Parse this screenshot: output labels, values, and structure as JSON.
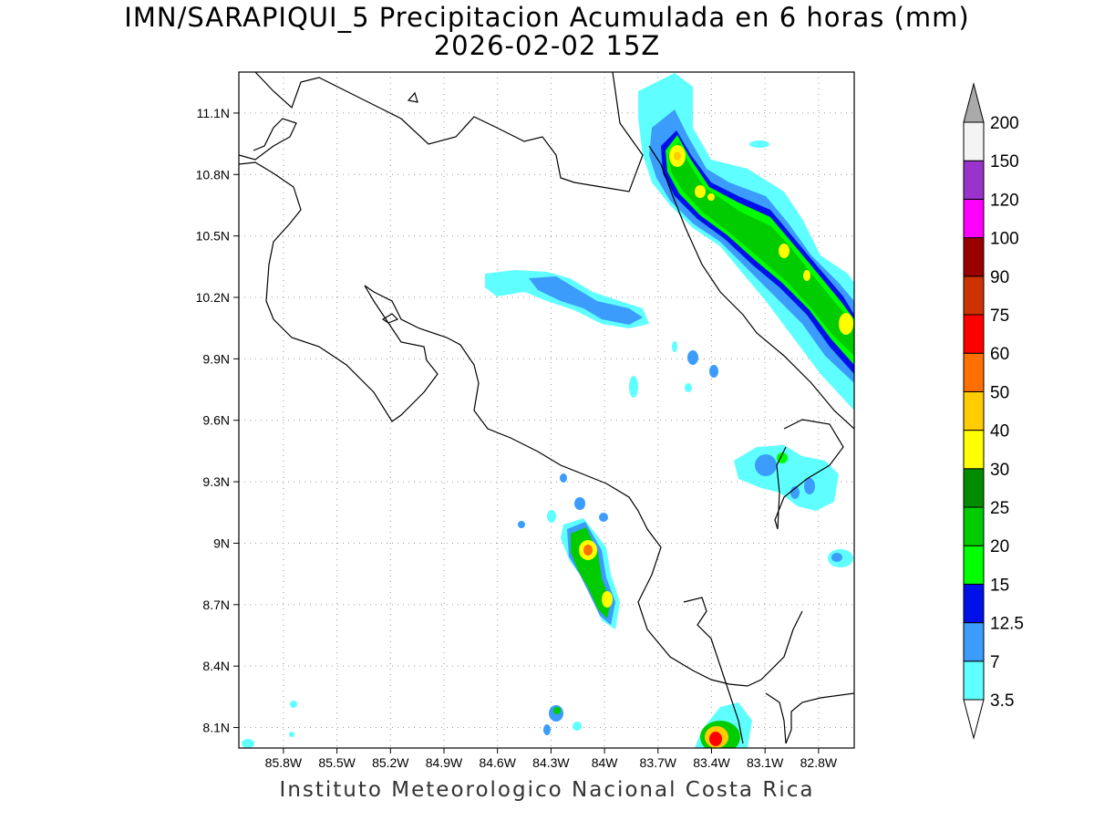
{
  "title_line1": "IMN/SARAPIQUI_5 Precipitacion Acumulada en 6 horas (mm)",
  "title_line2": "2026-02-02 15Z",
  "footer": "Instituto Meteorologico Nacional Costa Rica",
  "map": {
    "lon_range": [
      -86.05,
      -82.6
    ],
    "lat_range": [
      8.0,
      11.3
    ],
    "lon_ticks": [
      "85.8W",
      "85.5W",
      "85.2W",
      "84.9W",
      "84.6W",
      "84.3W",
      "84W",
      "83.7W",
      "83.4W",
      "83.1W",
      "82.8W"
    ],
    "lat_ticks": [
      "8.1N",
      "8.4N",
      "8.7N",
      "9N",
      "9.3N",
      "9.6N",
      "9.9N",
      "10.2N",
      "10.5N",
      "10.8N",
      "11.1N"
    ],
    "grid": true
  },
  "colorbar": {
    "labels": [
      "3.5",
      "7",
      "12.5",
      "15",
      "20",
      "25",
      "30",
      "40",
      "50",
      "60",
      "75",
      "90",
      "100",
      "120",
      "150",
      "200"
    ],
    "colors": [
      "#60ffff",
      "#3c9cfc",
      "#0010e8",
      "#00ff00",
      "#00cc00",
      "#008c00",
      "#ffff00",
      "#ffcc00",
      "#ff7000",
      "#ff0000",
      "#cc3300",
      "#990000",
      "#ff00ff",
      "#9933cc",
      "#f4f4f4",
      "#aaaaaa"
    ]
  }
}
